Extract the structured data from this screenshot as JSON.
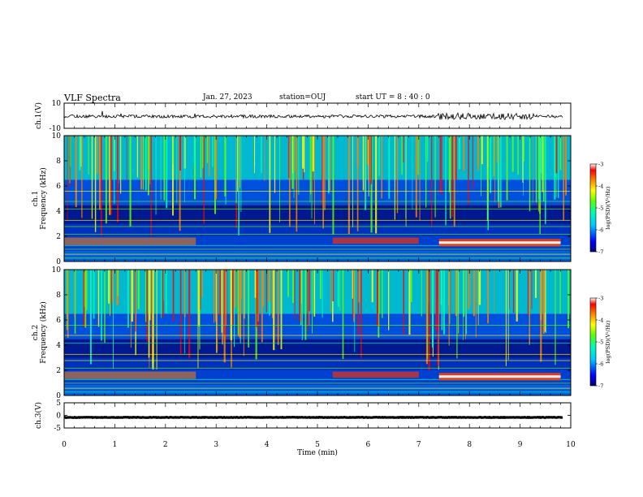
{
  "header": {
    "title": "VLF Spectra",
    "date": "Jan. 27, 2023",
    "station": "station=OUJ",
    "start_ut": "start UT = 8 : 40 : 0"
  },
  "chart_data": [
    {
      "type": "line",
      "panel": "ch1-waveform",
      "ylabel": "ch.1(V)",
      "ylim": [
        -10,
        10
      ],
      "y_ticks": [
        "10",
        "-10"
      ],
      "description_series": [
        {
          "level": -0.5,
          "noise_amplitude": 1.2
        }
      ]
    },
    {
      "type": "heatmap",
      "panel": "ch1-spectrogram",
      "ylabel_channel": "ch.1",
      "ylabel": "Frequency (kHz)",
      "ylim": [
        0,
        10
      ],
      "y_ticks": [
        "0",
        "2",
        "4",
        "6",
        "8",
        "10"
      ],
      "colorbar": {
        "label": "log(PSD)(V²/Hz)",
        "range": [
          -7,
          -3
        ],
        "ticks": [
          "-3",
          "-4",
          "-5",
          "-6",
          "-7"
        ]
      }
    },
    {
      "type": "heatmap",
      "panel": "ch2-spectrogram",
      "ylabel_channel": "ch.2",
      "ylabel": "Frequency (kHz)",
      "ylim": [
        0,
        10
      ],
      "y_ticks": [
        "0",
        "2",
        "4",
        "6",
        "8",
        "10"
      ],
      "colorbar": {
        "label": "log(PSD)(V²/Hz)",
        "range": [
          -7,
          -3
        ],
        "ticks": [
          "-3",
          "-4",
          "-5",
          "-6",
          "-7"
        ]
      }
    },
    {
      "type": "line",
      "panel": "ch3-waveform",
      "ylabel": "ch.3(V)",
      "ylim": [
        -5,
        5
      ],
      "y_ticks": [
        "5",
        "0",
        "-5"
      ],
      "description_series": [
        {
          "level": -0.8,
          "noise_amplitude": 0.1
        }
      ]
    }
  ],
  "x_axis": {
    "xlabel": "Time (min)",
    "xlim": [
      0,
      10
    ],
    "ticks": [
      "0",
      "1",
      "2",
      "3",
      "4",
      "5",
      "6",
      "7",
      "8",
      "9",
      "10"
    ]
  },
  "colors": {
    "colormap": [
      "#000080",
      "#0000ff",
      "#00c8ff",
      "#00ffb0",
      "#60ff00",
      "#ffff00",
      "#ff8000",
      "#ff0000",
      "#ffffff"
    ]
  }
}
